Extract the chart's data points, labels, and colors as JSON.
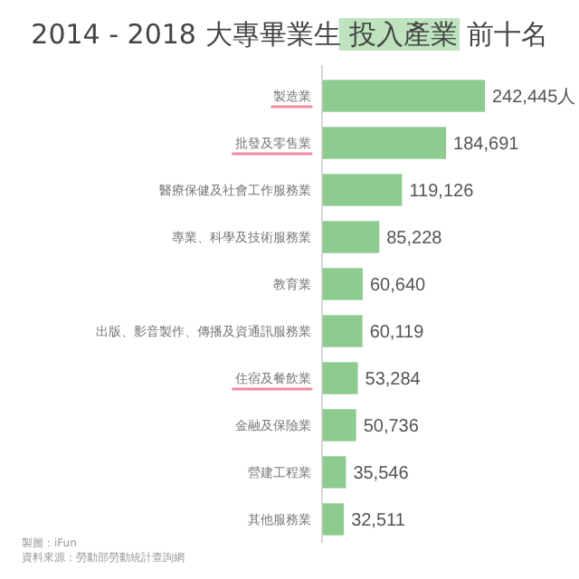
{
  "chart_data": {
    "type": "bar",
    "orientation": "horizontal",
    "title": "2014 - 2018 大專畢業生 投入產業 前十名",
    "categories": [
      "製造業",
      "批發及零售業",
      "醫療保健及社會工作服務業",
      "專業、科學及技術服務業",
      "教育業",
      "出版、影音製作、傳播及資通訊服務業",
      "住宿及餐飲業",
      "金融及保險業",
      "營建工程業",
      "其他服務業"
    ],
    "values": [
      242445,
      184691,
      119126,
      85228,
      60640,
      60119,
      53284,
      50736,
      35546,
      32511
    ],
    "value_labels": [
      "242,445人",
      "184,691",
      "119,126",
      "85,228",
      "60,640",
      "60,119",
      "53,284",
      "50,736",
      "35,546",
      "32,511"
    ],
    "color": "#8dcb8e",
    "annotations": [
      "製圖：iFun",
      "資料來源：勞動部勞動統計查詢網"
    ]
  }
}
